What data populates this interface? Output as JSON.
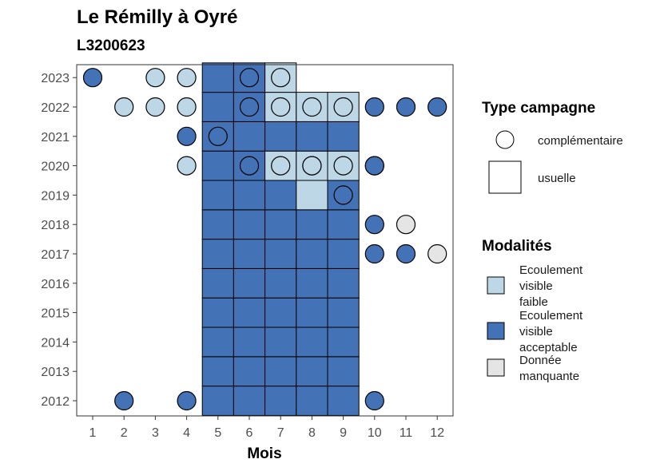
{
  "chart_data": {
    "type": "heatmap",
    "title": "Le Rémilly à Oyré",
    "subtitle": "L3200623",
    "xlabel": "Mois",
    "ylabel": "",
    "x_ticks": [
      "1",
      "2",
      "3",
      "4",
      "5",
      "6",
      "7",
      "8",
      "9",
      "10",
      "11",
      "12"
    ],
    "y_ticks": [
      "2012",
      "2013",
      "2014",
      "2015",
      "2016",
      "2017",
      "2018",
      "2019",
      "2020",
      "2021",
      "2022",
      "2023"
    ],
    "colors": {
      "faible": "#bdd7e7",
      "acceptable": "#4472b6",
      "manquante": "#e5e5e5"
    },
    "usuelle_cells": [
      {
        "year": 2012,
        "month": 5,
        "m": "acceptable"
      },
      {
        "year": 2012,
        "month": 6,
        "m": "acceptable"
      },
      {
        "year": 2012,
        "month": 7,
        "m": "acceptable"
      },
      {
        "year": 2012,
        "month": 8,
        "m": "acceptable"
      },
      {
        "year": 2012,
        "month": 9,
        "m": "acceptable"
      },
      {
        "year": 2013,
        "month": 5,
        "m": "acceptable"
      },
      {
        "year": 2013,
        "month": 6,
        "m": "acceptable"
      },
      {
        "year": 2013,
        "month": 7,
        "m": "acceptable"
      },
      {
        "year": 2013,
        "month": 8,
        "m": "acceptable"
      },
      {
        "year": 2013,
        "month": 9,
        "m": "acceptable"
      },
      {
        "year": 2014,
        "month": 5,
        "m": "acceptable"
      },
      {
        "year": 2014,
        "month": 6,
        "m": "acceptable"
      },
      {
        "year": 2014,
        "month": 7,
        "m": "acceptable"
      },
      {
        "year": 2014,
        "month": 8,
        "m": "acceptable"
      },
      {
        "year": 2014,
        "month": 9,
        "m": "acceptable"
      },
      {
        "year": 2015,
        "month": 5,
        "m": "acceptable"
      },
      {
        "year": 2015,
        "month": 6,
        "m": "acceptable"
      },
      {
        "year": 2015,
        "month": 7,
        "m": "acceptable"
      },
      {
        "year": 2015,
        "month": 8,
        "m": "acceptable"
      },
      {
        "year": 2015,
        "month": 9,
        "m": "acceptable"
      },
      {
        "year": 2016,
        "month": 5,
        "m": "acceptable"
      },
      {
        "year": 2016,
        "month": 6,
        "m": "acceptable"
      },
      {
        "year": 2016,
        "month": 7,
        "m": "acceptable"
      },
      {
        "year": 2016,
        "month": 8,
        "m": "acceptable"
      },
      {
        "year": 2016,
        "month": 9,
        "m": "acceptable"
      },
      {
        "year": 2017,
        "month": 5,
        "m": "acceptable"
      },
      {
        "year": 2017,
        "month": 6,
        "m": "acceptable"
      },
      {
        "year": 2017,
        "month": 7,
        "m": "acceptable"
      },
      {
        "year": 2017,
        "month": 8,
        "m": "acceptable"
      },
      {
        "year": 2017,
        "month": 9,
        "m": "acceptable"
      },
      {
        "year": 2018,
        "month": 5,
        "m": "acceptable"
      },
      {
        "year": 2018,
        "month": 6,
        "m": "acceptable"
      },
      {
        "year": 2018,
        "month": 7,
        "m": "acceptable"
      },
      {
        "year": 2018,
        "month": 8,
        "m": "acceptable"
      },
      {
        "year": 2018,
        "month": 9,
        "m": "acceptable"
      },
      {
        "year": 2019,
        "month": 5,
        "m": "acceptable"
      },
      {
        "year": 2019,
        "month": 6,
        "m": "acceptable"
      },
      {
        "year": 2019,
        "month": 7,
        "m": "acceptable"
      },
      {
        "year": 2019,
        "month": 8,
        "m": "faible"
      },
      {
        "year": 2019,
        "month": 9,
        "m": "acceptable"
      },
      {
        "year": 2020,
        "month": 5,
        "m": "acceptable"
      },
      {
        "year": 2020,
        "month": 6,
        "m": "acceptable"
      },
      {
        "year": 2020,
        "month": 7,
        "m": "faible"
      },
      {
        "year": 2020,
        "month": 8,
        "m": "faible"
      },
      {
        "year": 2020,
        "month": 9,
        "m": "faible"
      },
      {
        "year": 2021,
        "month": 5,
        "m": "acceptable"
      },
      {
        "year": 2021,
        "month": 6,
        "m": "acceptable"
      },
      {
        "year": 2021,
        "month": 7,
        "m": "acceptable"
      },
      {
        "year": 2021,
        "month": 8,
        "m": "acceptable"
      },
      {
        "year": 2021,
        "month": 9,
        "m": "acceptable"
      },
      {
        "year": 2022,
        "month": 5,
        "m": "acceptable"
      },
      {
        "year": 2022,
        "month": 6,
        "m": "acceptable"
      },
      {
        "year": 2022,
        "month": 7,
        "m": "faible"
      },
      {
        "year": 2022,
        "month": 8,
        "m": "faible"
      },
      {
        "year": 2022,
        "month": 9,
        "m": "faible"
      },
      {
        "year": 2023,
        "month": 5,
        "m": "acceptable"
      },
      {
        "year": 2023,
        "month": 6,
        "m": "acceptable"
      },
      {
        "year": 2023,
        "month": 7,
        "m": "faible"
      }
    ],
    "complementaire_points": [
      {
        "year": 2023,
        "month": 1,
        "m": "acceptable"
      },
      {
        "year": 2023,
        "month": 3,
        "m": "faible"
      },
      {
        "year": 2023,
        "month": 4,
        "m": "faible"
      },
      {
        "year": 2023,
        "month": 6,
        "m": "acceptable"
      },
      {
        "year": 2023,
        "month": 7,
        "m": "faible"
      },
      {
        "year": 2022,
        "month": 2,
        "m": "faible"
      },
      {
        "year": 2022,
        "month": 3,
        "m": "faible"
      },
      {
        "year": 2022,
        "month": 4,
        "m": "faible"
      },
      {
        "year": 2022,
        "month": 6,
        "m": "acceptable"
      },
      {
        "year": 2022,
        "month": 7,
        "m": "faible"
      },
      {
        "year": 2022,
        "month": 8,
        "m": "faible"
      },
      {
        "year": 2022,
        "month": 9,
        "m": "faible"
      },
      {
        "year": 2022,
        "month": 10,
        "m": "acceptable"
      },
      {
        "year": 2022,
        "month": 11,
        "m": "acceptable"
      },
      {
        "year": 2022,
        "month": 12,
        "m": "acceptable"
      },
      {
        "year": 2021,
        "month": 4,
        "m": "acceptable"
      },
      {
        "year": 2021,
        "month": 5,
        "m": "acceptable"
      },
      {
        "year": 2020,
        "month": 4,
        "m": "faible"
      },
      {
        "year": 2020,
        "month": 6,
        "m": "acceptable"
      },
      {
        "year": 2020,
        "month": 7,
        "m": "faible"
      },
      {
        "year": 2020,
        "month": 8,
        "m": "faible"
      },
      {
        "year": 2020,
        "month": 8,
        "m": "faible"
      },
      {
        "year": 2020,
        "month": 9,
        "m": "faible"
      },
      {
        "year": 2020,
        "month": 10,
        "m": "acceptable"
      },
      {
        "year": 2020,
        "month": 10,
        "m": "acceptable"
      },
      {
        "year": 2019,
        "month": 9,
        "m": "acceptable"
      },
      {
        "year": 2018,
        "month": 10,
        "m": "acceptable"
      },
      {
        "year": 2018,
        "month": 11,
        "m": "manquante"
      },
      {
        "year": 2017,
        "month": 10,
        "m": "acceptable"
      },
      {
        "year": 2017,
        "month": 11,
        "m": "acceptable"
      },
      {
        "year": 2017,
        "month": 12,
        "m": "manquante"
      },
      {
        "year": 2012,
        "month": 2,
        "m": "acceptable"
      },
      {
        "year": 2012,
        "month": 4,
        "m": "acceptable"
      },
      {
        "year": 2012,
        "month": 10,
        "m": "acceptable"
      }
    ],
    "legend": {
      "placement": "right",
      "type_title": "Type campagne",
      "type_items": [
        {
          "label": "complémentaire",
          "shape": "circle"
        },
        {
          "label": "usuelle",
          "shape": "square"
        }
      ],
      "modalites_title": "Modalités",
      "modalites_items": [
        {
          "key": "faible",
          "lines": [
            "Ecoulement",
            "visible",
            "faible"
          ]
        },
        {
          "key": "acceptable",
          "lines": [
            "Ecoulement",
            "visible",
            "acceptable"
          ]
        },
        {
          "key": "manquante",
          "lines": [
            "Donnée",
            "manquante"
          ]
        }
      ]
    },
    "grid": false
  }
}
